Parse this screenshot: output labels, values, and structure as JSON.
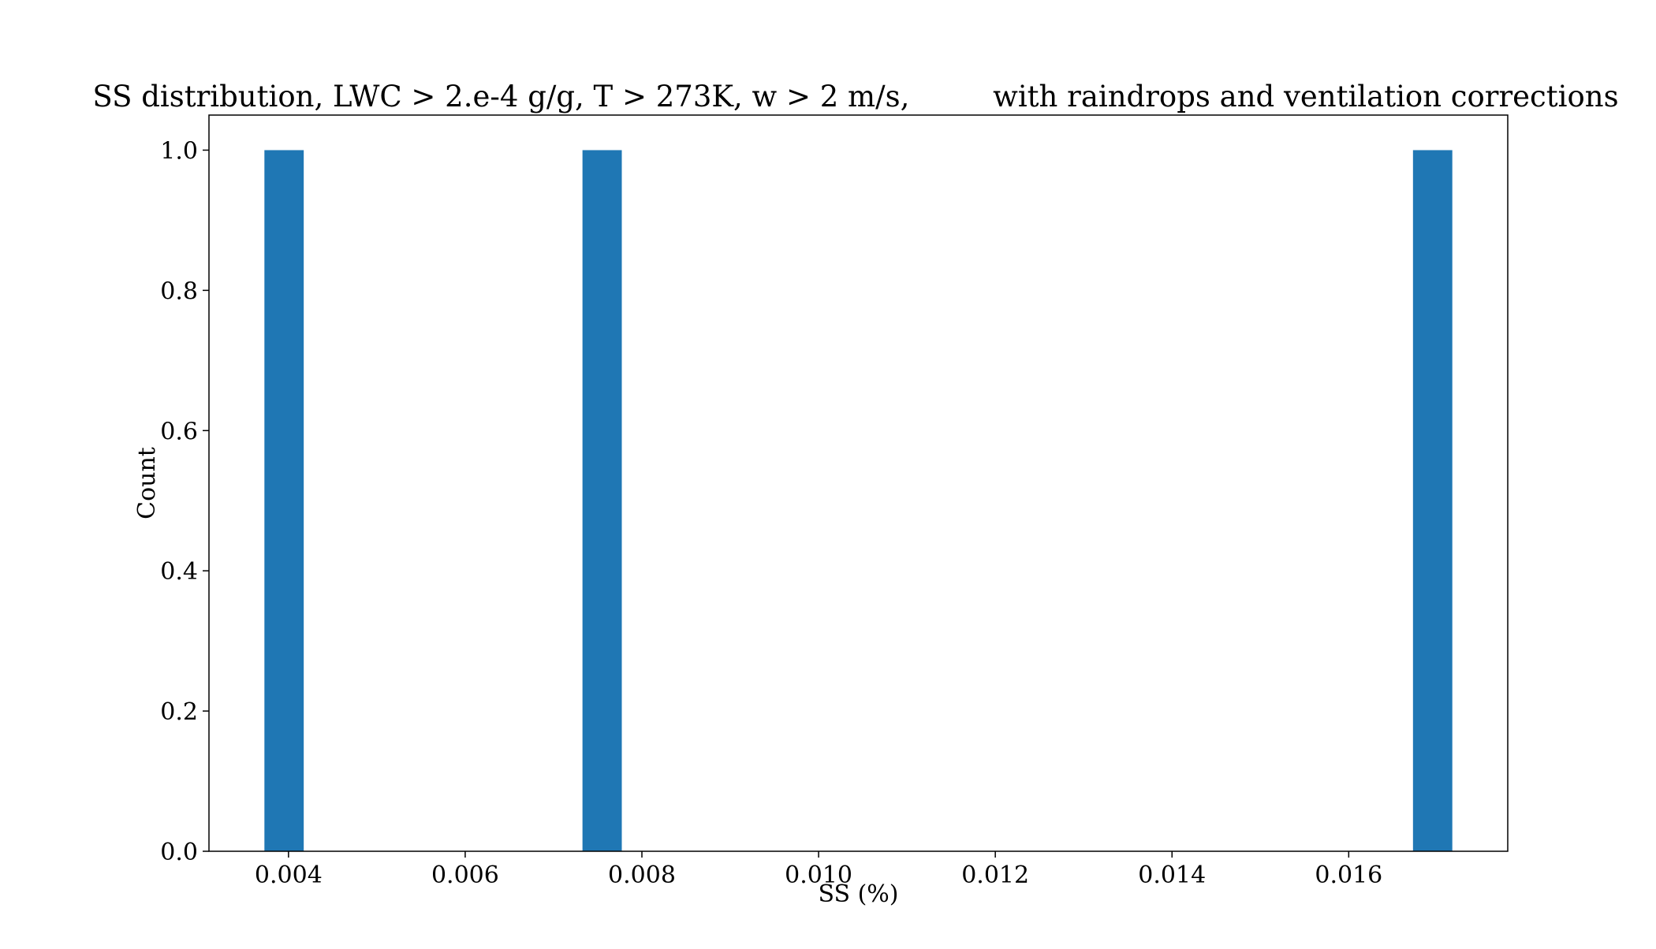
{
  "chart_data": {
    "type": "bar",
    "title": "SS distribution, LWC > 2.e-4 g/g, T > 273K, w > 2 m/s,         with raindrops and ventilation corrections",
    "xlabel": "SS (%)",
    "ylabel": "Count",
    "xlim": [
      0.0031,
      0.0178
    ],
    "ylim": [
      0.0,
      1.05
    ],
    "x_ticks": [
      0.004,
      0.006,
      0.008,
      0.01,
      0.012,
      0.014,
      0.016
    ],
    "x_tick_labels": [
      "0.004",
      "0.006",
      "0.008",
      "0.010",
      "0.012",
      "0.014",
      "0.016"
    ],
    "y_ticks": [
      0.0,
      0.2,
      0.4,
      0.6,
      0.8,
      1.0
    ],
    "y_tick_labels": [
      "0.0",
      "0.2",
      "0.4",
      "0.6",
      "0.8",
      "1.0"
    ],
    "bin_width": 0.000445,
    "series": [
      {
        "color": "#1f77b4",
        "bars": [
          {
            "x": 0.00395,
            "count": 1.0
          },
          {
            "x": 0.00755,
            "count": 1.0
          },
          {
            "x": 0.01695,
            "count": 1.0
          }
        ]
      }
    ],
    "grid": false,
    "legend": "none"
  }
}
